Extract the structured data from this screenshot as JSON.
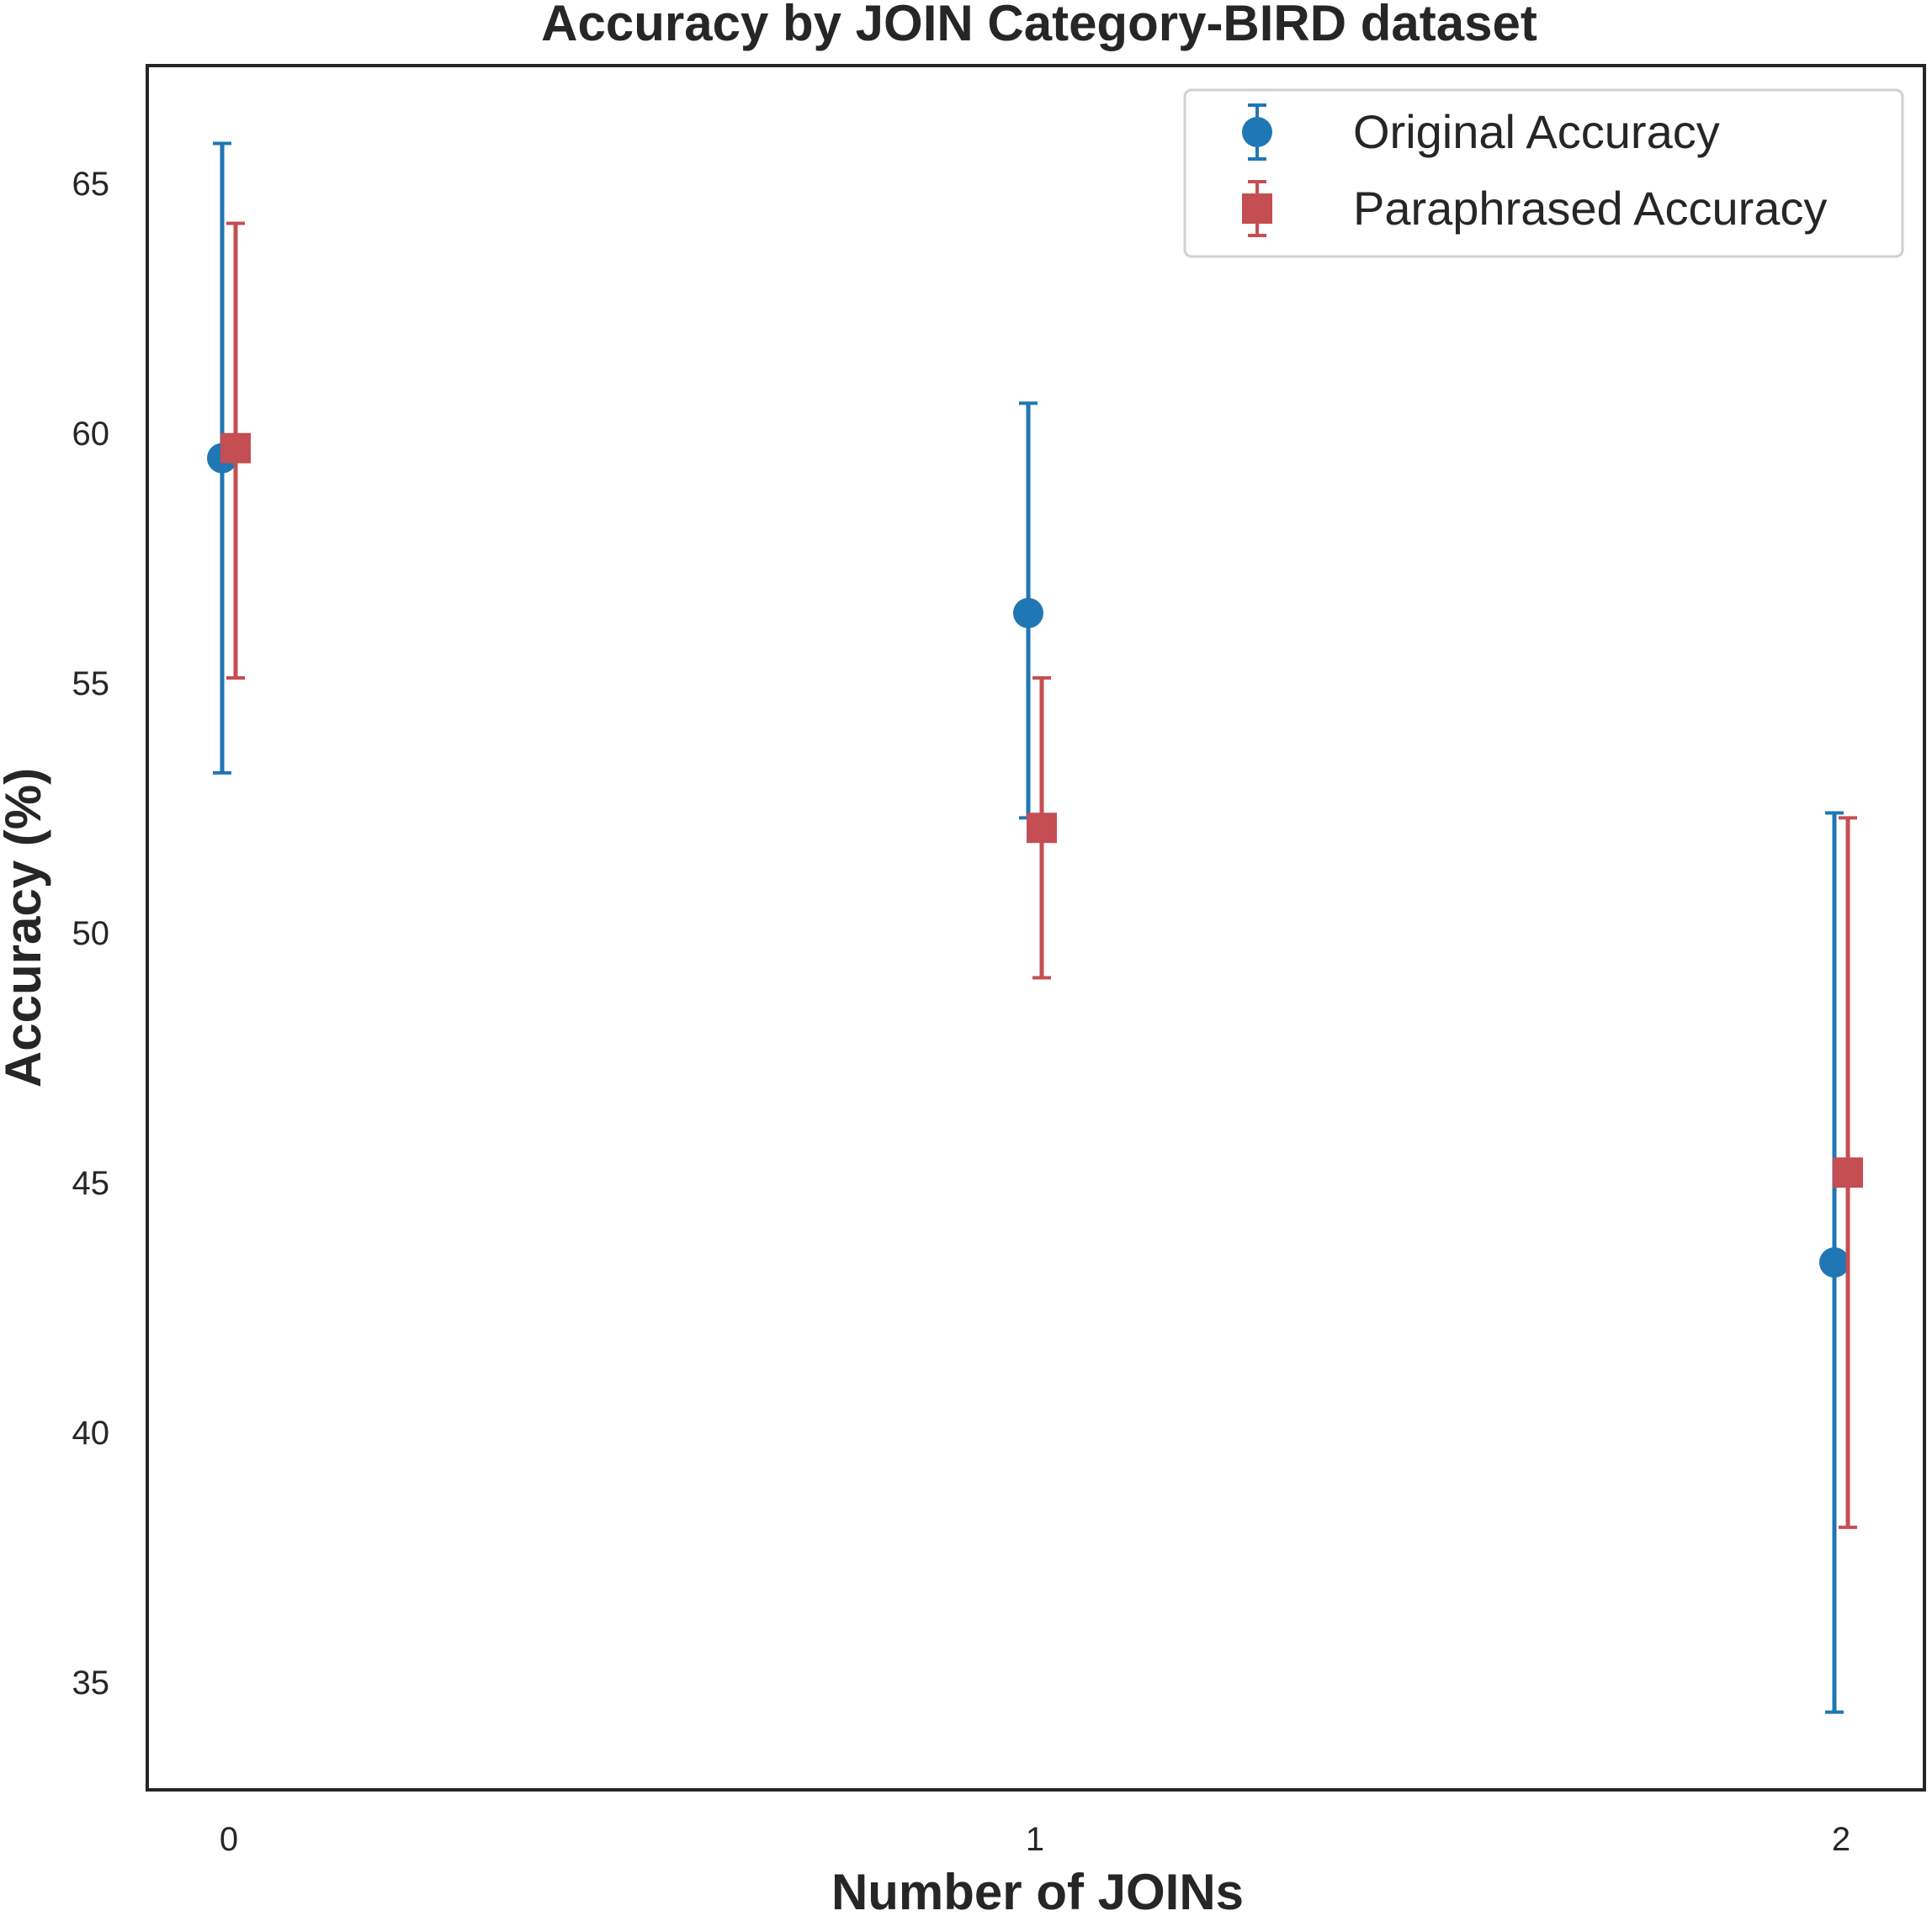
{
  "chart_data": {
    "type": "scatter",
    "title": "Accuracy by JOIN Category-BIRD dataset",
    "xlabel": "Number of JOINs",
    "ylabel": "Accuracy (%)",
    "x": [
      0,
      1,
      2
    ],
    "xticks": [
      "0",
      "1",
      "2"
    ],
    "yticks": [
      35,
      40,
      45,
      50,
      55,
      60,
      65
    ],
    "ylim": [
      33.5,
      67.5
    ],
    "grid": false,
    "legend_position": "top-right",
    "series": [
      {
        "name": "Original Accuracy",
        "marker": "circle",
        "color": "#1f77b4",
        "values": [
          59.5,
          56.4,
          43.4
        ],
        "error_low": [
          53.2,
          52.3,
          34.4
        ],
        "error_high": [
          65.8,
          60.6,
          52.4
        ]
      },
      {
        "name": "Paraphrased Accuracy",
        "marker": "square",
        "color": "#c44e52",
        "values": [
          59.7,
          52.1,
          45.2
        ],
        "error_low": [
          55.1,
          49.1,
          38.1
        ],
        "error_high": [
          64.2,
          55.1,
          52.3
        ]
      }
    ]
  }
}
